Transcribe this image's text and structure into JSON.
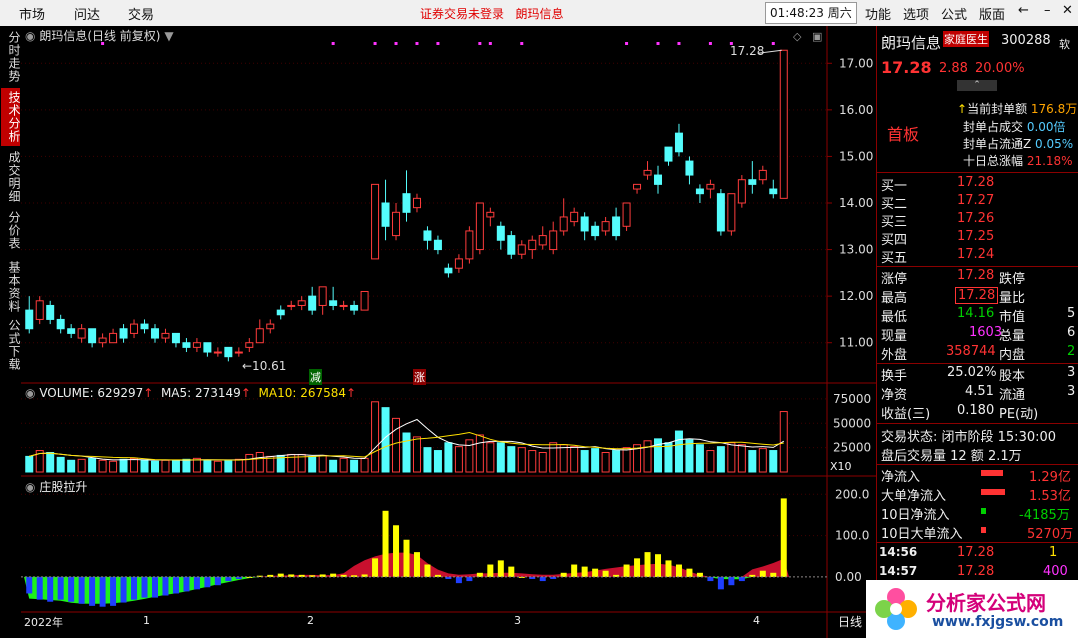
{
  "menu": {
    "market": "市场",
    "quote": "问达",
    "trade": "交易",
    "title_notice": "证券交易未登录",
    "title_stock": "朗玛信息",
    "clock": "01:48:23 周六",
    "function": "功能",
    "options": "选项",
    "formula": "公式",
    "layout": "版面"
  },
  "left_tabs": [
    {
      "label": "分时走势",
      "active": false
    },
    {
      "label": "技术分析",
      "active": true
    },
    {
      "label": "成交明细",
      "active": false
    },
    {
      "label": "分价表",
      "active": false
    },
    {
      "label": "基本资料",
      "active": false
    },
    {
      "label": "公式下载",
      "active": false
    }
  ],
  "main_chart": {
    "title": "朗玛信息(日线 前复权)",
    "price_high_label": "17.28",
    "price_low_label": "←10.61",
    "y_ticks": [
      "17.00",
      "16.00",
      "15.00",
      "14.00",
      "13.00",
      "12.00",
      "11.00"
    ],
    "limit_down_marker": "减",
    "limit_up_marker": "涨"
  },
  "volume_panel": {
    "vol_label": "VOLUME: 629297",
    "ma5_label": "MA5: 273149",
    "ma10_label": "MA10: 267584",
    "y_ticks": [
      "75000",
      "50000",
      "25000"
    ],
    "unit": "X10"
  },
  "indicator_panel": {
    "name": "庄股拉升",
    "y_ticks": [
      "200.0",
      "100.0",
      "0.00"
    ]
  },
  "x_axis": {
    "labels": [
      "2022年",
      "1",
      "2",
      "3",
      "4"
    ],
    "period": "日线"
  },
  "chart_data": {
    "type": "candlestick",
    "ylim": [
      10.5,
      17.5
    ],
    "candles": [
      [
        11.7,
        11.3,
        12.0,
        11.2
      ],
      [
        11.5,
        11.9,
        12.0,
        11.4
      ],
      [
        11.8,
        11.5,
        11.9,
        11.4
      ],
      [
        11.5,
        11.3,
        11.6,
        11.2
      ],
      [
        11.3,
        11.2,
        11.4,
        11.1
      ],
      [
        11.1,
        11.3,
        11.4,
        11.0
      ],
      [
        11.3,
        11.0,
        11.3,
        10.9
      ],
      [
        11.0,
        11.1,
        11.2,
        10.9
      ],
      [
        11.0,
        11.2,
        11.3,
        11.0
      ],
      [
        11.3,
        11.1,
        11.4,
        11.0
      ],
      [
        11.2,
        11.4,
        11.5,
        11.1
      ],
      [
        11.4,
        11.3,
        11.5,
        11.2
      ],
      [
        11.3,
        11.1,
        11.4,
        11.0
      ],
      [
        11.1,
        11.2,
        11.3,
        11.0
      ],
      [
        11.2,
        11.0,
        11.2,
        10.9
      ],
      [
        11.0,
        10.9,
        11.1,
        10.8
      ],
      [
        10.9,
        11.0,
        11.1,
        10.8
      ],
      [
        11.0,
        10.8,
        11.0,
        10.7
      ],
      [
        10.8,
        10.8,
        10.9,
        10.7
      ],
      [
        10.9,
        10.7,
        10.9,
        10.6
      ],
      [
        10.8,
        10.8,
        10.9,
        10.7
      ],
      [
        10.9,
        11.0,
        11.1,
        10.8
      ],
      [
        11.0,
        11.3,
        11.5,
        11.0
      ],
      [
        11.3,
        11.4,
        11.5,
        11.2
      ],
      [
        11.7,
        11.6,
        11.8,
        11.5
      ],
      [
        11.8,
        11.8,
        11.9,
        11.7
      ],
      [
        11.8,
        11.9,
        12.0,
        11.7
      ],
      [
        12.0,
        11.7,
        12.2,
        11.6
      ],
      [
        11.8,
        12.2,
        12.2,
        11.6
      ],
      [
        11.9,
        11.8,
        12.2,
        11.7
      ],
      [
        11.8,
        11.8,
        11.9,
        11.7
      ],
      [
        11.8,
        11.7,
        11.9,
        11.6
      ],
      [
        11.7,
        12.1,
        12.1,
        11.7
      ],
      [
        12.8,
        14.4,
        14.4,
        12.8
      ],
      [
        14.0,
        13.5,
        14.5,
        13.2
      ],
      [
        13.3,
        13.8,
        14.0,
        13.2
      ],
      [
        14.2,
        13.8,
        14.7,
        13.6
      ],
      [
        13.9,
        14.1,
        14.2,
        13.8
      ],
      [
        13.4,
        13.2,
        13.5,
        13.0
      ],
      [
        13.2,
        13.0,
        13.3,
        12.9
      ],
      [
        12.6,
        12.5,
        12.7,
        12.4
      ],
      [
        12.6,
        12.8,
        12.9,
        12.5
      ],
      [
        12.8,
        13.4,
        13.5,
        12.7
      ],
      [
        13.0,
        14.0,
        14.0,
        12.9
      ],
      [
        13.7,
        13.8,
        13.9,
        13.5
      ],
      [
        13.5,
        13.2,
        13.6,
        13.0
      ],
      [
        13.3,
        12.9,
        13.4,
        12.8
      ],
      [
        12.9,
        13.1,
        13.2,
        12.8
      ],
      [
        13.0,
        13.2,
        13.3,
        12.8
      ],
      [
        13.1,
        13.3,
        13.5,
        13.0
      ],
      [
        13.0,
        13.4,
        13.6,
        12.9
      ],
      [
        13.4,
        13.7,
        14.1,
        13.3
      ],
      [
        13.6,
        13.8,
        13.9,
        13.5
      ],
      [
        13.7,
        13.4,
        13.8,
        13.2
      ],
      [
        13.5,
        13.3,
        13.6,
        13.2
      ],
      [
        13.4,
        13.6,
        13.7,
        13.3
      ],
      [
        13.7,
        13.3,
        13.9,
        13.2
      ],
      [
        13.5,
        14.0,
        14.0,
        13.4
      ],
      [
        14.3,
        14.4,
        14.4,
        14.2
      ],
      [
        14.6,
        14.7,
        14.9,
        14.5
      ],
      [
        14.6,
        14.4,
        14.8,
        14.2
      ],
      [
        15.2,
        14.9,
        15.2,
        14.8
      ],
      [
        15.5,
        15.1,
        15.7,
        15.0
      ],
      [
        14.9,
        14.6,
        15.0,
        14.4
      ],
      [
        14.3,
        14.2,
        14.4,
        14.0
      ],
      [
        14.3,
        14.4,
        14.5,
        14.1
      ],
      [
        14.2,
        13.4,
        14.3,
        13.3
      ],
      [
        13.4,
        14.2,
        14.2,
        13.3
      ],
      [
        14.0,
        14.5,
        14.6,
        13.9
      ],
      [
        14.5,
        14.4,
        14.9,
        14.2
      ],
      [
        14.5,
        14.7,
        14.8,
        14.4
      ],
      [
        14.3,
        14.2,
        14.5,
        14.1
      ],
      [
        14.1,
        17.28,
        17.28,
        14.1
      ]
    ],
    "volume": [
      16,
      22,
      20,
      15,
      12,
      13,
      14,
      12,
      11,
      13,
      14,
      12,
      11,
      12,
      12,
      13,
      14,
      12,
      11,
      12,
      13,
      18,
      20,
      16,
      17,
      18,
      18,
      16,
      17,
      12,
      14,
      12,
      14,
      72,
      66,
      55,
      40,
      36,
      25,
      22,
      30,
      26,
      33,
      38,
      30,
      30,
      26,
      25,
      22,
      20,
      30,
      28,
      26,
      22,
      24,
      20,
      22,
      25,
      28,
      32,
      34,
      30,
      42,
      33,
      28,
      22,
      26,
      30,
      28,
      22,
      24,
      22,
      62
    ],
    "indicator": [
      -40,
      -55,
      -60,
      -55,
      -60,
      -65,
      -70,
      -72,
      -70,
      -62,
      -55,
      -50,
      -50,
      -45,
      -40,
      -35,
      -30,
      -25,
      -20,
      -10,
      -5,
      0,
      3,
      5,
      8,
      6,
      5,
      4,
      6,
      8,
      5,
      4,
      6,
      45,
      160,
      125,
      90,
      60,
      30,
      5,
      -5,
      -15,
      -10,
      10,
      30,
      40,
      25,
      0,
      -5,
      -10,
      -5,
      10,
      30,
      25,
      20,
      15,
      5,
      30,
      45,
      60,
      55,
      40,
      30,
      20,
      10,
      -10,
      -30,
      -20,
      -10,
      5,
      15,
      10,
      190
    ]
  }
}
